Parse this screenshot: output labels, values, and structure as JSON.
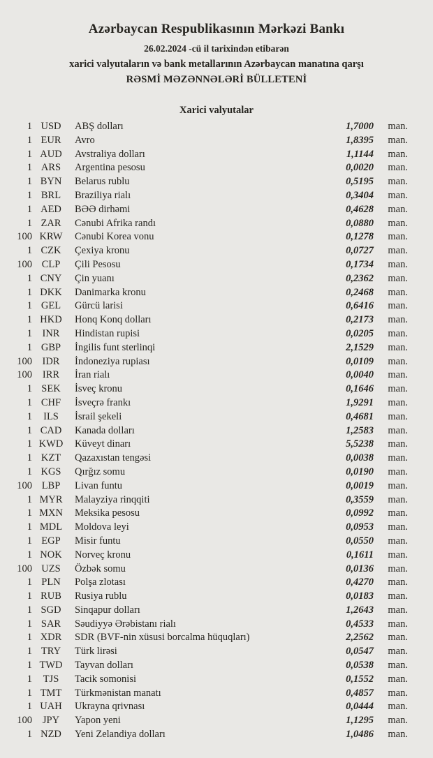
{
  "page": {
    "colors": {
      "background": "#e9e8e5",
      "text": "#26241f"
    }
  },
  "header": {
    "bank_name": "Azərbaycan Respublikasının Mərkəzi Bankı",
    "date_line": "26.02.2024 -cü il tarixindən etibarən",
    "scope_line": "xarici valyutaların və bank metallarının Azərbaycan manatına qarşı",
    "bulletin_line": "RƏSMİ MƏZƏNNƏLƏRİ BÜLLETENİ"
  },
  "section": {
    "title": "Xarici valyutalar"
  },
  "rates": {
    "unit": "man.",
    "rows": [
      {
        "qty": "1",
        "code": "USD",
        "name": "ABŞ dolları",
        "rate": "1,7000",
        "unit": "man."
      },
      {
        "qty": "1",
        "code": "EUR",
        "name": "Avro",
        "rate": "1,8395",
        "unit": "man."
      },
      {
        "qty": "1",
        "code": "AUD",
        "name": "Avstraliya dolları",
        "rate": "1,1144",
        "unit": "man."
      },
      {
        "qty": "1",
        "code": "ARS",
        "name": "Argentina pesosu",
        "rate": "0,0020",
        "unit": "man."
      },
      {
        "qty": "1",
        "code": "BYN",
        "name": "Belarus rublu",
        "rate": "0,5195",
        "unit": "man."
      },
      {
        "qty": "1",
        "code": "BRL",
        "name": "Braziliya rialı",
        "rate": "0,3404",
        "unit": "man."
      },
      {
        "qty": "1",
        "code": "AED",
        "name": "BƏƏ dirhəmi",
        "rate": "0,4628",
        "unit": "man."
      },
      {
        "qty": "1",
        "code": "ZAR",
        "name": "Cənubi Afrika randı",
        "rate": "0,0880",
        "unit": "man."
      },
      {
        "qty": "100",
        "code": "KRW",
        "name": "Cənubi Korea vonu",
        "rate": "0,1278",
        "unit": "man."
      },
      {
        "qty": "1",
        "code": "CZK",
        "name": "Çexiya kronu",
        "rate": "0,0727",
        "unit": "man."
      },
      {
        "qty": "100",
        "code": "CLP",
        "name": "Çili Pesosu",
        "rate": "0,1734",
        "unit": "man."
      },
      {
        "qty": "1",
        "code": "CNY",
        "name": "Çin yuanı",
        "rate": "0,2362",
        "unit": "man."
      },
      {
        "qty": "1",
        "code": "DKK",
        "name": "Danimarka kronu",
        "rate": "0,2468",
        "unit": "man."
      },
      {
        "qty": "1",
        "code": "GEL",
        "name": "Gürcü larisi",
        "rate": "0,6416",
        "unit": "man."
      },
      {
        "qty": "1",
        "code": "HKD",
        "name": "Honq Konq dolları",
        "rate": "0,2173",
        "unit": "man."
      },
      {
        "qty": "1",
        "code": "INR",
        "name": "Hindistan rupisi",
        "rate": "0,0205",
        "unit": "man."
      },
      {
        "qty": "1",
        "code": "GBP",
        "name": "İngilis funt sterlinqi",
        "rate": "2,1529",
        "unit": "man."
      },
      {
        "qty": "100",
        "code": "IDR",
        "name": "İndoneziya rupiası",
        "rate": "0,0109",
        "unit": "man."
      },
      {
        "qty": "100",
        "code": "IRR",
        "name": "İran rialı",
        "rate": "0,0040",
        "unit": "man."
      },
      {
        "qty": "1",
        "code": "SEK",
        "name": "İsveç kronu",
        "rate": "0,1646",
        "unit": "man."
      },
      {
        "qty": "1",
        "code": "CHF",
        "name": "İsveçrə frankı",
        "rate": "1,9291",
        "unit": "man."
      },
      {
        "qty": "1",
        "code": "ILS",
        "name": "İsrail şekeli",
        "rate": "0,4681",
        "unit": "man."
      },
      {
        "qty": "1",
        "code": "CAD",
        "name": "Kanada dolları",
        "rate": "1,2583",
        "unit": "man."
      },
      {
        "qty": "1",
        "code": "KWD",
        "name": "Küveyt dinarı",
        "rate": "5,5238",
        "unit": "man."
      },
      {
        "qty": "1",
        "code": "KZT",
        "name": "Qazaxıstan tengəsi",
        "rate": "0,0038",
        "unit": "man."
      },
      {
        "qty": "1",
        "code": "KGS",
        "name": "Qırğız somu",
        "rate": "0,0190",
        "unit": "man."
      },
      {
        "qty": "100",
        "code": "LBP",
        "name": "Livan funtu",
        "rate": "0,0019",
        "unit": "man."
      },
      {
        "qty": "1",
        "code": "MYR",
        "name": "Malayziya rinqqiti",
        "rate": "0,3559",
        "unit": "man."
      },
      {
        "qty": "1",
        "code": "MXN",
        "name": "Meksika pesosu",
        "rate": "0,0992",
        "unit": "man."
      },
      {
        "qty": "1",
        "code": "MDL",
        "name": "Moldova leyi",
        "rate": "0,0953",
        "unit": "man."
      },
      {
        "qty": "1",
        "code": "EGP",
        "name": "Misir funtu",
        "rate": "0,0550",
        "unit": "man."
      },
      {
        "qty": "1",
        "code": "NOK",
        "name": "Norveç kronu",
        "rate": "0,1611",
        "unit": "man."
      },
      {
        "qty": "100",
        "code": "UZS",
        "name": "Özbək somu",
        "rate": "0,0136",
        "unit": "man."
      },
      {
        "qty": "1",
        "code": "PLN",
        "name": "Polşa zlotası",
        "rate": "0,4270",
        "unit": "man."
      },
      {
        "qty": "1",
        "code": "RUB",
        "name": "Rusiya rublu",
        "rate": "0,0183",
        "unit": "man."
      },
      {
        "qty": "1",
        "code": "SGD",
        "name": "Sinqapur dolları",
        "rate": "1,2643",
        "unit": "man."
      },
      {
        "qty": "1",
        "code": "SAR",
        "name": "Səudiyyə Ərəbistanı rialı",
        "rate": "0,4533",
        "unit": "man."
      },
      {
        "qty": "1",
        "code": "XDR",
        "name": "SDR (BVF-nin xüsusi borcalma hüquqları)",
        "rate": "2,2562",
        "unit": "man."
      },
      {
        "qty": "1",
        "code": "TRY",
        "name": "Türk lirəsi",
        "rate": "0,0547",
        "unit": "man."
      },
      {
        "qty": "1",
        "code": "TWD",
        "name": "Tayvan dolları",
        "rate": "0,0538",
        "unit": "man."
      },
      {
        "qty": "1",
        "code": "TJS",
        "name": "Tacik somonisi",
        "rate": "0,1552",
        "unit": "man."
      },
      {
        "qty": "1",
        "code": "TMT",
        "name": "Türkmənistan manatı",
        "rate": "0,4857",
        "unit": "man."
      },
      {
        "qty": "1",
        "code": "UAH",
        "name": "Ukrayna qrivnası",
        "rate": "0,0444",
        "unit": "man."
      },
      {
        "qty": "100",
        "code": "JPY",
        "name": "Yapon yeni",
        "rate": "1,1295",
        "unit": "man."
      },
      {
        "qty": "1",
        "code": "NZD",
        "name": "Yeni Zelandiya dolları",
        "rate": "1,0486",
        "unit": "man."
      }
    ]
  }
}
